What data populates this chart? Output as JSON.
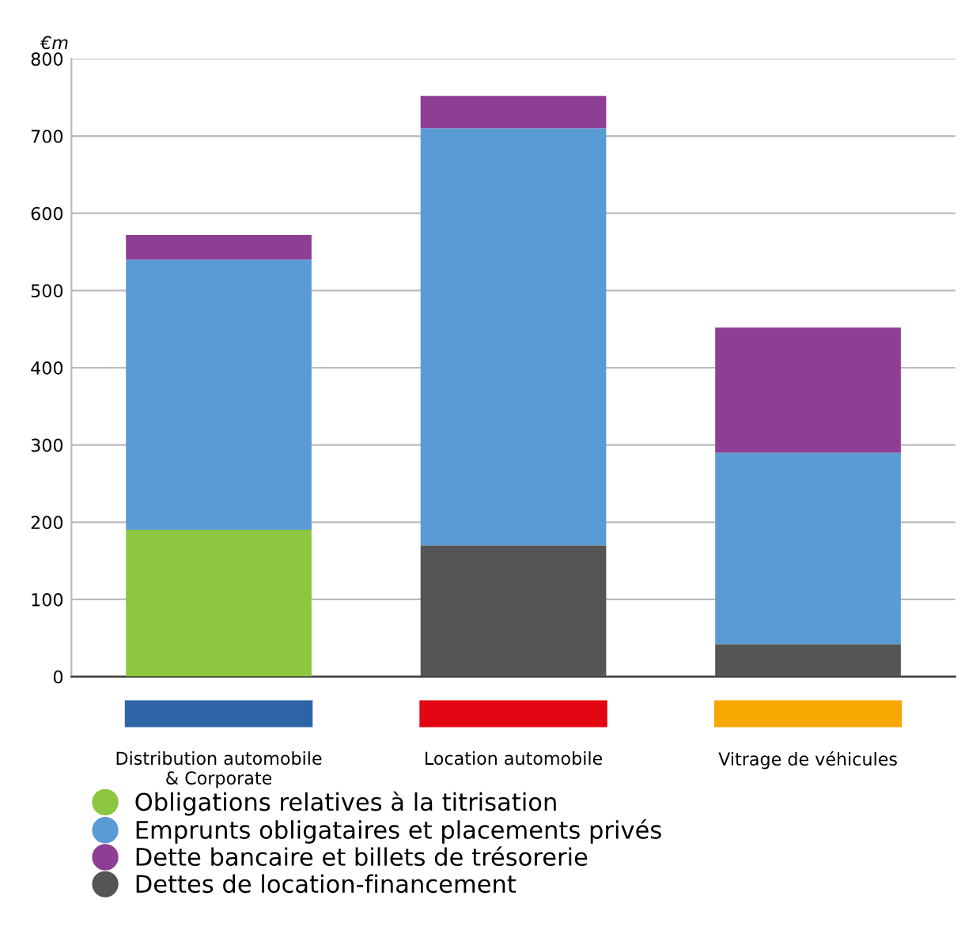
{
  "chart_data": {
    "type": "bar",
    "stacked": true,
    "ylabel": "€m",
    "categories": [
      "Distribution automobile\n& Corporate",
      "Location automobile",
      "Vitrage de véhicules"
    ],
    "series": [
      {
        "name": "Obligations relatives à la titrisation",
        "color": "#8dc63f",
        "values": [
          190,
          0,
          0
        ]
      },
      {
        "name": "Dettes de location-financement",
        "color": "#555555",
        "values": [
          0,
          170,
          42
        ]
      },
      {
        "name": "Emprunts obligataires et placements privés",
        "color": "#5b9bd5",
        "values": [
          350,
          540,
          248
        ]
      },
      {
        "name": "Dette bancaire et billets de trésorerie",
        "color": "#8e3f93",
        "values": [
          32,
          42,
          162
        ]
      }
    ],
    "ylim": [
      0,
      800
    ],
    "yticks": [
      0,
      100,
      200,
      300,
      400,
      500,
      600,
      700,
      800
    ],
    "grid": "y",
    "legend": "bottom left"
  }
}
